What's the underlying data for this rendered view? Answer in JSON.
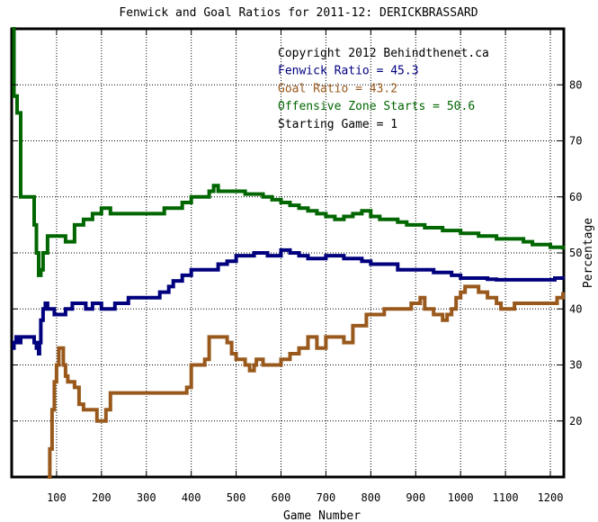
{
  "chart_data": {
    "type": "line",
    "title": "Fenwick and Goal Ratios for 2011-12: DERICKBRASSARD",
    "xlabel": "Game Number",
    "ylabel": "Percentage",
    "xlim": [
      0,
      1230
    ],
    "ylim": [
      10,
      90
    ],
    "x_ticks": [
      100,
      200,
      300,
      400,
      500,
      600,
      700,
      800,
      900,
      1000,
      1100,
      1200
    ],
    "x_tick_labels": [
      "100",
      "200",
      "300",
      "400",
      "500",
      "600",
      "700",
      "800",
      "900",
      "1000",
      "1100",
      "1200"
    ],
    "y_ticks": [
      20,
      30,
      40,
      50,
      60,
      70,
      80
    ],
    "y_tick_labels": [
      "20",
      "30",
      "40",
      "50",
      "60",
      "70",
      "80"
    ],
    "y_axis_side": "right",
    "grid": true,
    "legend_placement": "top-right",
    "annotations": [
      {
        "text": "Copyright 2012 Behindthenet.ca",
        "color": "#000000"
      },
      {
        "text": "Fenwick Ratio = 45.3",
        "color": "#00007f"
      },
      {
        "text": "Goal Ratio = 43.2",
        "color": "#99591c"
      },
      {
        "text": "Offensive Zone Starts = 50.6",
        "color": "#006600"
      },
      {
        "text": "Starting Game = 1",
        "color": "#000000"
      }
    ],
    "series": [
      {
        "color": "#00007f",
        "x": [
          1,
          5,
          10,
          15,
          20,
          30,
          40,
          50,
          55,
          60,
          62,
          65,
          70,
          75,
          80,
          85,
          95,
          110,
          120,
          125,
          135,
          150,
          165,
          180,
          200,
          230,
          260,
          290,
          330,
          350,
          360,
          370,
          380,
          390,
          400,
          420,
          440,
          460,
          480,
          500,
          540,
          570,
          600,
          620,
          640,
          660,
          680,
          700,
          720,
          740,
          760,
          780,
          800,
          830,
          860,
          900,
          940,
          980,
          1000,
          1040,
          1060,
          1080,
          1100,
          1150,
          1200,
          1210,
          1220,
          1228
        ],
        "values": [
          33,
          34,
          35,
          34,
          35,
          35,
          35,
          34,
          33,
          32,
          34,
          38,
          40,
          41,
          40,
          40,
          39,
          39,
          40,
          40,
          41,
          41,
          40,
          41,
          40,
          41,
          42,
          42,
          43,
          44,
          45,
          45,
          46,
          46,
          47,
          47,
          47,
          48,
          48.5,
          49.5,
          50,
          49.5,
          50.5,
          50,
          49.5,
          49,
          49,
          49.5,
          49.5,
          49,
          49,
          48.5,
          48,
          48,
          47,
          47,
          46.5,
          46,
          45.5,
          45.5,
          45.3,
          45.2,
          45.2,
          45.2,
          45.2,
          45.5,
          45.5,
          45.3
        ]
      },
      {
        "color": "#99591c",
        "x": [
          80,
          85,
          90,
          95,
          100,
          105,
          110,
          115,
          120,
          125,
          140,
          150,
          160,
          180,
          190,
          200,
          205,
          210,
          220,
          240,
          260,
          300,
          340,
          380,
          390,
          400,
          420,
          430,
          440,
          470,
          480,
          490,
          500,
          510,
          520,
          530,
          540,
          545,
          560,
          580,
          600,
          620,
          640,
          660,
          680,
          700,
          720,
          740,
          760,
          780,
          790,
          810,
          830,
          860,
          890,
          900,
          910,
          920,
          940,
          960,
          970,
          980,
          990,
          1000,
          1010,
          1030,
          1040,
          1060,
          1080,
          1090,
          1100,
          1120,
          1140,
          1160,
          1200,
          1215,
          1228
        ],
        "values": [
          10,
          15,
          22,
          27,
          30,
          33,
          33,
          30,
          28,
          27,
          26,
          23,
          22,
          22,
          20,
          20,
          20,
          22,
          25,
          25,
          25,
          25,
          25,
          25,
          26,
          30,
          30,
          31,
          35,
          35,
          34,
          32,
          31,
          31,
          30,
          29,
          30,
          31,
          30,
          30,
          31,
          32,
          33,
          35,
          33,
          35,
          35,
          34,
          37,
          37,
          39,
          39,
          40,
          40,
          41,
          41,
          42,
          40,
          39,
          38,
          39,
          40,
          42,
          43,
          44,
          44,
          43,
          42,
          41,
          40,
          40,
          41,
          41,
          41,
          41,
          42,
          43
        ]
      },
      {
        "color": "#006600",
        "x": [
          1,
          5,
          12,
          20,
          35,
          50,
          55,
          60,
          62,
          65,
          70,
          80,
          100,
          120,
          130,
          140,
          150,
          160,
          180,
          200,
          210,
          220,
          250,
          300,
          320,
          340,
          360,
          380,
          400,
          430,
          440,
          450,
          460,
          470,
          480,
          500,
          520,
          540,
          560,
          580,
          600,
          620,
          640,
          660,
          680,
          700,
          720,
          740,
          760,
          780,
          800,
          820,
          840,
          860,
          880,
          900,
          920,
          940,
          960,
          980,
          1000,
          1020,
          1040,
          1060,
          1080,
          1100,
          1120,
          1140,
          1160,
          1180,
          1200,
          1220,
          1228
        ],
        "values": [
          90,
          78,
          75,
          60,
          60,
          55,
          50,
          46,
          46,
          47,
          50,
          53,
          53,
          52,
          52,
          55,
          55,
          56,
          57,
          58,
          58,
          57,
          57,
          57,
          57,
          58,
          58,
          59,
          60,
          60,
          61,
          62,
          61,
          61,
          61,
          61,
          60.5,
          60.5,
          60,
          59.5,
          59,
          58.5,
          58,
          57.5,
          57,
          56.5,
          56,
          56.5,
          57,
          57.5,
          56.5,
          56,
          56,
          55.5,
          55,
          55,
          54.5,
          54.5,
          54,
          54,
          53.5,
          53.5,
          53,
          53,
          52.5,
          52.5,
          52.5,
          52,
          51.5,
          51.5,
          51,
          51,
          50.6
        ]
      }
    ]
  }
}
